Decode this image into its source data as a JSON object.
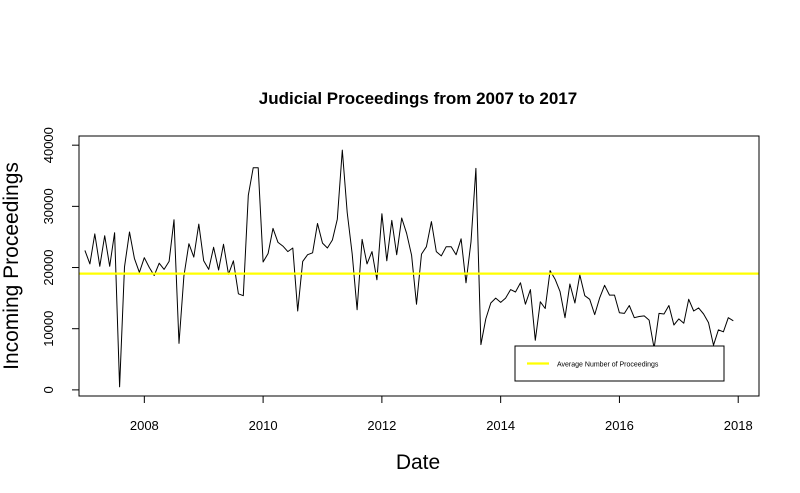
{
  "chart_data": {
    "type": "line",
    "title": "Judicial Proceedings from 2007 to 2017",
    "xlabel": "Date",
    "ylabel": "Incoming Proceedings",
    "xlim": [
      2006.9,
      2018.35
    ],
    "ylim": [
      -1000,
      41500
    ],
    "x_ticks": [
      2008,
      2010,
      2012,
      2014,
      2016,
      2018
    ],
    "x_tick_labels": [
      "2008",
      "2010",
      "2012",
      "2014",
      "2016",
      "2018"
    ],
    "y_ticks": [
      0,
      10000,
      20000,
      30000,
      40000
    ],
    "y_tick_labels": [
      "0",
      "10000",
      "20000",
      "30000",
      "40000"
    ],
    "grid": false,
    "legend_position": "bottom-right",
    "series": [
      {
        "type": "line",
        "color": "#000000",
        "x_start": 2007.0,
        "x_step": 0.0833333,
        "values": [
          22800,
          20600,
          25500,
          20200,
          25200,
          20200,
          25700,
          500,
          20100,
          25800,
          21500,
          19200,
          21600,
          20000,
          18700,
          20700,
          19700,
          21000,
          27800,
          7600,
          18600,
          23900,
          21700,
          27100,
          21100,
          19700,
          23300,
          19600,
          23800,
          18900,
          21100,
          15700,
          15400,
          31800,
          36300,
          36300,
          20900,
          22300,
          26400,
          24100,
          23500,
          22600,
          23200,
          12900,
          21000,
          22100,
          22400,
          27200,
          24000,
          23200,
          24500,
          27900,
          39200,
          29000,
          22200,
          13100,
          24600,
          20600,
          22600,
          18000,
          28800,
          21100,
          27700,
          22100,
          28100,
          25600,
          22000,
          14000,
          22200,
          23400,
          27500,
          22600,
          21900,
          23400,
          23400,
          22100,
          24700,
          17500,
          24200,
          36200,
          7400,
          11600,
          14200,
          15000,
          14300,
          15000,
          16400,
          16000,
          17500,
          14000,
          16400,
          8100,
          14400,
          13300,
          19500,
          18100,
          16100,
          11800,
          17300,
          14200,
          18800,
          15400,
          14800,
          12300,
          15000,
          17100,
          15500,
          15500,
          12600,
          12500,
          13800,
          11800,
          12000,
          12100,
          11400,
          6800,
          12500,
          12400,
          13800,
          10600,
          11600,
          10900,
          14800,
          12900,
          13400,
          12400,
          11000,
          7300,
          9800,
          9500,
          11800,
          11300
        ]
      },
      {
        "name": "Average Number of Proceedings",
        "type": "hline",
        "color": "#ffff00",
        "value": 19000
      }
    ]
  }
}
